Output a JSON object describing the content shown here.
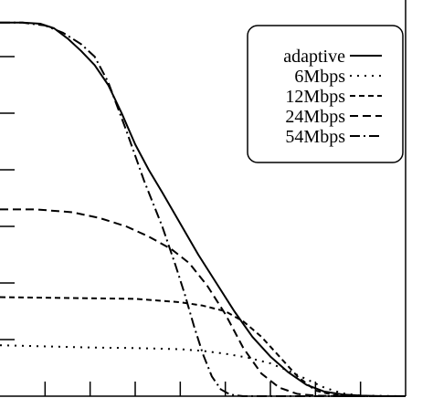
{
  "chart_data": {
    "type": "line",
    "legend_placement": "top-right",
    "grid": false,
    "xlim": [
      0,
      9
    ],
    "ylim": [
      0,
      7
    ],
    "series": [
      {
        "name": "adaptive",
        "dash": "solid",
        "points": [
          [
            0.0,
            6.6
          ],
          [
            0.5,
            6.6
          ],
          [
            0.9,
            6.58
          ],
          [
            1.2,
            6.5
          ],
          [
            1.5,
            6.32
          ],
          [
            1.8,
            6.1
          ],
          [
            2.1,
            5.85
          ],
          [
            2.4,
            5.5
          ],
          [
            2.7,
            5.0
          ],
          [
            3.0,
            4.45
          ],
          [
            3.3,
            4.0
          ],
          [
            3.6,
            3.6
          ],
          [
            4.0,
            3.05
          ],
          [
            4.4,
            2.5
          ],
          [
            4.8,
            2.0
          ],
          [
            5.2,
            1.5
          ],
          [
            5.6,
            1.05
          ],
          [
            6.0,
            0.7
          ],
          [
            6.4,
            0.42
          ],
          [
            6.8,
            0.2
          ],
          [
            7.2,
            0.08
          ],
          [
            7.6,
            0.03
          ],
          [
            8.0,
            0.01
          ],
          [
            8.5,
            0.0
          ],
          [
            9.0,
            0.0
          ]
        ]
      },
      {
        "name": "6Mbps",
        "dash": "dot",
        "points": [
          [
            0.0,
            0.9
          ],
          [
            1.0,
            0.88
          ],
          [
            2.0,
            0.86
          ],
          [
            3.0,
            0.85
          ],
          [
            4.0,
            0.83
          ],
          [
            4.5,
            0.8
          ],
          [
            5.0,
            0.75
          ],
          [
            5.5,
            0.68
          ],
          [
            6.0,
            0.58
          ],
          [
            6.4,
            0.45
          ],
          [
            6.8,
            0.3
          ],
          [
            7.2,
            0.15
          ],
          [
            7.6,
            0.05
          ],
          [
            8.0,
            0.01
          ],
          [
            9.0,
            0.0
          ]
        ]
      },
      {
        "name": "12Mbps",
        "dash": "short-dash",
        "points": [
          [
            0.0,
            1.75
          ],
          [
            1.0,
            1.74
          ],
          [
            2.0,
            1.73
          ],
          [
            3.0,
            1.72
          ],
          [
            4.0,
            1.66
          ],
          [
            4.5,
            1.6
          ],
          [
            5.0,
            1.5
          ],
          [
            5.4,
            1.32
          ],
          [
            5.8,
            1.05
          ],
          [
            6.2,
            0.7
          ],
          [
            6.6,
            0.35
          ],
          [
            7.0,
            0.1
          ],
          [
            7.4,
            0.02
          ],
          [
            7.8,
            0.0
          ],
          [
            9.0,
            0.0
          ]
        ]
      },
      {
        "name": "24Mbps",
        "dash": "dash",
        "points": [
          [
            0.0,
            3.3
          ],
          [
            0.8,
            3.3
          ],
          [
            1.6,
            3.25
          ],
          [
            2.2,
            3.15
          ],
          [
            2.8,
            3.0
          ],
          [
            3.3,
            2.82
          ],
          [
            3.8,
            2.6
          ],
          [
            4.2,
            2.35
          ],
          [
            4.6,
            1.95
          ],
          [
            5.0,
            1.45
          ],
          [
            5.4,
            0.85
          ],
          [
            5.8,
            0.4
          ],
          [
            6.2,
            0.15
          ],
          [
            6.6,
            0.04
          ],
          [
            7.0,
            0.01
          ],
          [
            7.5,
            0.0
          ],
          [
            9.0,
            0.0
          ]
        ]
      },
      {
        "name": "54Mbps",
        "dash": "dash-dot",
        "points": [
          [
            0.0,
            6.6
          ],
          [
            0.5,
            6.6
          ],
          [
            1.0,
            6.55
          ],
          [
            1.4,
            6.42
          ],
          [
            1.8,
            6.22
          ],
          [
            2.1,
            6.0
          ],
          [
            2.4,
            5.55
          ],
          [
            2.8,
            4.7
          ],
          [
            3.2,
            3.8
          ],
          [
            3.6,
            3.0
          ],
          [
            3.9,
            2.3
          ],
          [
            4.1,
            1.8
          ],
          [
            4.3,
            1.25
          ],
          [
            4.5,
            0.75
          ],
          [
            4.7,
            0.35
          ],
          [
            4.9,
            0.12
          ],
          [
            5.1,
            0.03
          ],
          [
            5.4,
            0.0
          ],
          [
            9.0,
            0.0
          ]
        ]
      }
    ]
  }
}
